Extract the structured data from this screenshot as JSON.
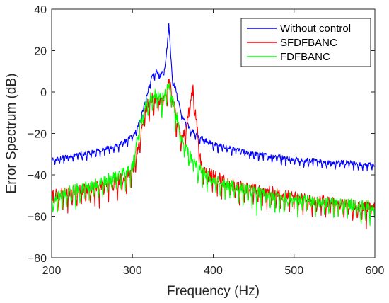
{
  "chart_data": {
    "type": "line",
    "title": "",
    "xlabel": "Frequency (Hz)",
    "ylabel": "Error Spectrum (dB)",
    "xlim": [
      200,
      600
    ],
    "ylim": [
      -80,
      40
    ],
    "xticks": [
      200,
      300,
      400,
      500,
      600
    ],
    "yticks": [
      -80,
      -60,
      -40,
      -20,
      0,
      20,
      40
    ],
    "xtick_labels": [
      "200",
      "300",
      "400",
      "500",
      "600"
    ],
    "ytick_labels": [
      "−80",
      "−60",
      "−40",
      "−20",
      "0",
      "20",
      "40"
    ],
    "grid": false,
    "legend_position": "top-right",
    "series": [
      {
        "name": "Without control",
        "color": "#0000ff",
        "x": [
          200,
          210,
          220,
          230,
          240,
          250,
          260,
          270,
          280,
          290,
          300,
          305,
          310,
          315,
          320,
          325,
          330,
          335,
          340,
          343,
          345,
          347,
          350,
          355,
          360,
          365,
          370,
          375,
          380,
          390,
          400,
          410,
          420,
          430,
          440,
          450,
          460,
          470,
          480,
          490,
          500,
          510,
          520,
          530,
          540,
          550,
          560,
          570,
          580,
          590,
          600
        ],
        "y": [
          -33,
          -32,
          -31,
          -30,
          -30,
          -29,
          -28,
          -27,
          -26,
          -24,
          -21,
          -18,
          -13,
          -6,
          2,
          8,
          10,
          8,
          12,
          22,
          34,
          20,
          5,
          0,
          -10,
          -14,
          -17,
          -19,
          -21,
          -23,
          -25,
          -26,
          -27,
          -28,
          -29,
          -30,
          -30,
          -31,
          -31,
          -32,
          -32,
          -33,
          -33,
          -33,
          -34,
          -34,
          -34,
          -34,
          -35,
          -35,
          -35
        ]
      },
      {
        "name": "SFDFBANC",
        "color": "#ff0000",
        "x": [
          200,
          210,
          220,
          230,
          240,
          250,
          260,
          270,
          280,
          290,
          300,
          305,
          310,
          315,
          320,
          325,
          330,
          335,
          340,
          345,
          350,
          355,
          360,
          365,
          370,
          375,
          378,
          382,
          385,
          390,
          400,
          410,
          420,
          430,
          440,
          450,
          460,
          470,
          480,
          490,
          500,
          510,
          520,
          530,
          540,
          550,
          560,
          570,
          580,
          590,
          600
        ],
        "y": [
          -50,
          -49,
          -48,
          -48,
          -47,
          -46,
          -45,
          -44,
          -43,
          -41,
          -38,
          -30,
          -20,
          -10,
          -5,
          -3,
          -3,
          -4,
          -3,
          5,
          -2,
          -15,
          -22,
          -20,
          -8,
          2,
          -10,
          -25,
          -35,
          -38,
          -40,
          -42,
          -44,
          -45,
          -46,
          -47,
          -48,
          -48,
          -49,
          -50,
          -50,
          -51,
          -52,
          -52,
          -53,
          -53,
          -54,
          -54,
          -55,
          -55,
          -55
        ]
      },
      {
        "name": "FDFBANC",
        "color": "#00ff00",
        "x": [
          200,
          210,
          220,
          230,
          240,
          250,
          260,
          270,
          280,
          290,
          300,
          305,
          310,
          315,
          320,
          325,
          330,
          335,
          340,
          345,
          350,
          355,
          360,
          365,
          370,
          380,
          390,
          400,
          410,
          420,
          430,
          440,
          450,
          460,
          470,
          480,
          490,
          500,
          510,
          520,
          530,
          540,
          550,
          560,
          570,
          580,
          590,
          600
        ],
        "y": [
          -52,
          -50,
          -48,
          -47,
          -46,
          -45,
          -44,
          -42,
          -41,
          -39,
          -36,
          -25,
          -15,
          -8,
          -4,
          -2,
          -1,
          -3,
          -2,
          3,
          -5,
          -12,
          -20,
          -26,
          -30,
          -36,
          -40,
          -42,
          -44,
          -45,
          -46,
          -47,
          -48,
          -49,
          -50,
          -50,
          -51,
          -51,
          -52,
          -52,
          -53,
          -53,
          -54,
          -54,
          -54,
          -55,
          -55,
          -55
        ]
      }
    ]
  }
}
